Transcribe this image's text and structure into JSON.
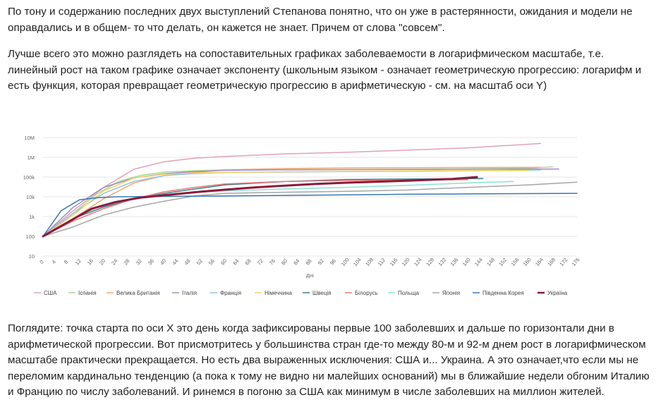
{
  "article": {
    "p1": "    По тону и содержанию последних двух выступлений Степанова  понятно,  что он уже в растерянности, ожидания и модели не оправдались и в общем- то что делать, он кажется не знает. Причем от слова \"совсем\".",
    "p2": "Лучше всего это можно разглядеть на сопоставительных графиках заболеваемости в логарифмическом масштабе, т.е. линейный рост на таком графике означает экспоненту (школьным языком - означает геометрическую прогрессию: логарифм и есть функция, которая превращает геометрическую прогрессию в арифметическую - см. на масштаб оси Y)",
    "p3": "Поглядите: точка старта по оси Х это день когда зафиксированы первые 100 заболевших и дальше по горизонтали дни в арифметической прогрессии. Вот присмотритесь у большинства стран где-то между 80-м и 92-м днем рост в логарифмическом масштабе практически прекращается. Но есть два выраженных исключения: США и... Украина. А это означает,что если мы не переломим кардинально тенденцию (а пока к тому не видно ни малейших оснований) мы в ближайшие недели обгоним Италию и Францию по числу заболеваний. И ринемся в погоню за США как минимум в числе заболевших на миллион жителей."
  },
  "chart_data": {
    "type": "line",
    "y_scale": "log",
    "ylim": [
      10,
      10000000
    ],
    "y_ticks": [
      10,
      100,
      1000,
      10000,
      100000,
      1000000,
      10000000
    ],
    "y_tick_labels": [
      "10",
      "100",
      "1k",
      "10k",
      "100k",
      "1M",
      "10M"
    ],
    "xlim": [
      0,
      176
    ],
    "x_ticks": [
      0,
      4,
      8,
      12,
      16,
      20,
      24,
      28,
      32,
      36,
      40,
      44,
      48,
      52,
      56,
      60,
      64,
      68,
      72,
      76,
      80,
      84,
      88,
      92,
      96,
      100,
      104,
      108,
      112,
      116,
      120,
      124,
      128,
      132,
      136,
      140,
      144,
      148,
      152,
      156,
      160,
      164,
      168,
      172,
      176
    ],
    "xlabel": "Дні",
    "grid": true,
    "legend_position": "bottom",
    "series": [
      {
        "name": "США",
        "color": "#e0a3b8",
        "width": 1.5,
        "points": [
          [
            0,
            100
          ],
          [
            10,
            2000
          ],
          [
            20,
            30000
          ],
          [
            30,
            250000
          ],
          [
            40,
            600000
          ],
          [
            50,
            900000
          ],
          [
            60,
            1100000
          ],
          [
            80,
            1500000
          ],
          [
            100,
            1800000
          ],
          [
            120,
            2300000
          ],
          [
            140,
            3000000
          ],
          [
            164,
            5000000
          ]
        ]
      },
      {
        "name": "Іспанія",
        "color": "#a8dd8a",
        "width": 1.5,
        "points": [
          [
            0,
            100
          ],
          [
            10,
            1500
          ],
          [
            18,
            15000
          ],
          [
            25,
            60000
          ],
          [
            32,
            120000
          ],
          [
            40,
            180000
          ],
          [
            50,
            210000
          ],
          [
            60,
            230000
          ],
          [
            100,
            240000
          ],
          [
            140,
            260000
          ],
          [
            160,
            280000
          ],
          [
            168,
            330000
          ]
        ]
      },
      {
        "name": "Велика Британія",
        "color": "#f2a772",
        "width": 1.5,
        "points": [
          [
            0,
            100
          ],
          [
            10,
            800
          ],
          [
            20,
            8000
          ],
          [
            30,
            50000
          ],
          [
            40,
            120000
          ],
          [
            50,
            170000
          ],
          [
            60,
            230000
          ],
          [
            80,
            270000
          ],
          [
            100,
            290000
          ],
          [
            130,
            300000
          ],
          [
            164,
            310000
          ]
        ]
      },
      {
        "name": "Італія",
        "color": "#a48bc7",
        "width": 1.5,
        "points": [
          [
            0,
            100
          ],
          [
            10,
            3000
          ],
          [
            20,
            30000
          ],
          [
            30,
            90000
          ],
          [
            40,
            150000
          ],
          [
            50,
            190000
          ],
          [
            60,
            220000
          ],
          [
            80,
            235000
          ],
          [
            100,
            240000
          ],
          [
            130,
            245000
          ],
          [
            170,
            255000
          ]
        ]
      },
      {
        "name": "Франція",
        "color": "#8fc3ec",
        "width": 1.5,
        "points": [
          [
            0,
            100
          ],
          [
            10,
            1500
          ],
          [
            20,
            15000
          ],
          [
            30,
            60000
          ],
          [
            40,
            120000
          ],
          [
            50,
            150000
          ],
          [
            60,
            170000
          ],
          [
            80,
            180000
          ],
          [
            100,
            190000
          ],
          [
            130,
            200000
          ],
          [
            164,
            230000
          ]
        ]
      },
      {
        "name": "Німеччина",
        "color": "#f4d35e",
        "width": 1.5,
        "points": [
          [
            0,
            100
          ],
          [
            10,
            1200
          ],
          [
            20,
            20000
          ],
          [
            30,
            90000
          ],
          [
            40,
            140000
          ],
          [
            50,
            160000
          ],
          [
            60,
            175000
          ],
          [
            80,
            185000
          ],
          [
            100,
            195000
          ],
          [
            130,
            210000
          ],
          [
            160,
            215000
          ]
        ]
      },
      {
        "name": "Швеція",
        "color": "#3f7f8c",
        "width": 1.5,
        "points": [
          [
            0,
            100
          ],
          [
            10,
            800
          ],
          [
            20,
            3000
          ],
          [
            30,
            8000
          ],
          [
            40,
            15000
          ],
          [
            50,
            25000
          ],
          [
            60,
            40000
          ],
          [
            80,
            60000
          ],
          [
            100,
            75000
          ],
          [
            120,
            80000
          ],
          [
            145,
            84000
          ]
        ]
      },
      {
        "name": "Білорусь",
        "color": "#e87878",
        "width": 1.5,
        "points": [
          [
            0,
            100
          ],
          [
            10,
            600
          ],
          [
            20,
            2500
          ],
          [
            30,
            8000
          ],
          [
            40,
            18000
          ],
          [
            50,
            30000
          ],
          [
            60,
            45000
          ],
          [
            80,
            60000
          ],
          [
            100,
            67000
          ],
          [
            120,
            70000
          ],
          [
            140,
            74000
          ]
        ]
      },
      {
        "name": "Польща",
        "color": "#8ae2cf",
        "width": 1.5,
        "points": [
          [
            0,
            100
          ],
          [
            10,
            800
          ],
          [
            20,
            4000
          ],
          [
            30,
            9000
          ],
          [
            40,
            13000
          ],
          [
            50,
            17000
          ],
          [
            60,
            20000
          ],
          [
            80,
            25000
          ],
          [
            100,
            30000
          ],
          [
            120,
            38000
          ],
          [
            140,
            50000
          ],
          [
            155,
            60000
          ]
        ]
      },
      {
        "name": "Японія",
        "color": "#a6a6a6",
        "width": 1.5,
        "points": [
          [
            0,
            100
          ],
          [
            10,
            300
          ],
          [
            20,
            1200
          ],
          [
            30,
            3000
          ],
          [
            40,
            6000
          ],
          [
            50,
            11000
          ],
          [
            60,
            15000
          ],
          [
            80,
            17000
          ],
          [
            100,
            19000
          ],
          [
            120,
            22000
          ],
          [
            140,
            30000
          ],
          [
            160,
            40000
          ],
          [
            176,
            55000
          ]
        ]
      },
      {
        "name": "Південна Корея",
        "color": "#3a78b4",
        "width": 1.5,
        "points": [
          [
            0,
            100
          ],
          [
            6,
            2000
          ],
          [
            12,
            7000
          ],
          [
            18,
            9000
          ],
          [
            24,
            10000
          ],
          [
            40,
            10500
          ],
          [
            60,
            11000
          ],
          [
            80,
            11800
          ],
          [
            100,
            12500
          ],
          [
            120,
            13500
          ],
          [
            140,
            14000
          ],
          [
            176,
            15000
          ]
        ]
      },
      {
        "name": "Україна",
        "color": "#8b1a3a",
        "width": 3,
        "points": [
          [
            0,
            100
          ],
          [
            8,
            500
          ],
          [
            16,
            2500
          ],
          [
            24,
            5500
          ],
          [
            32,
            9000
          ],
          [
            40,
            12000
          ],
          [
            50,
            17000
          ],
          [
            60,
            23000
          ],
          [
            70,
            30000
          ],
          [
            80,
            37000
          ],
          [
            90,
            45000
          ],
          [
            100,
            52000
          ],
          [
            110,
            58000
          ],
          [
            120,
            65000
          ],
          [
            135,
            80000
          ],
          [
            143,
            100000
          ]
        ]
      }
    ]
  }
}
